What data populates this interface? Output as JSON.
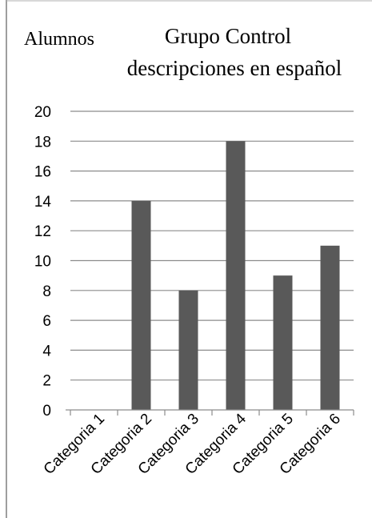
{
  "chart_data": {
    "type": "bar",
    "title_lines": [
      "Grupo Control",
      "descripciones en español"
    ],
    "ylabel": "Alumnos",
    "xlabel": "",
    "categories": [
      "Categoria 1",
      "Categoria 2",
      "Categoria 3",
      "Categoria 4",
      "Categoria 5",
      "Categoria 6"
    ],
    "values": [
      0,
      14,
      8,
      18,
      9,
      11
    ],
    "ylim": [
      0,
      20
    ],
    "yticks": [
      0,
      2,
      4,
      6,
      8,
      10,
      12,
      14,
      16,
      18,
      20
    ],
    "grid": true,
    "legend": "none",
    "colors": {
      "bar": "#595959",
      "grid": "#8c8c8c",
      "axis": "#8c8c8c",
      "frame": "#7f7f7f"
    }
  }
}
